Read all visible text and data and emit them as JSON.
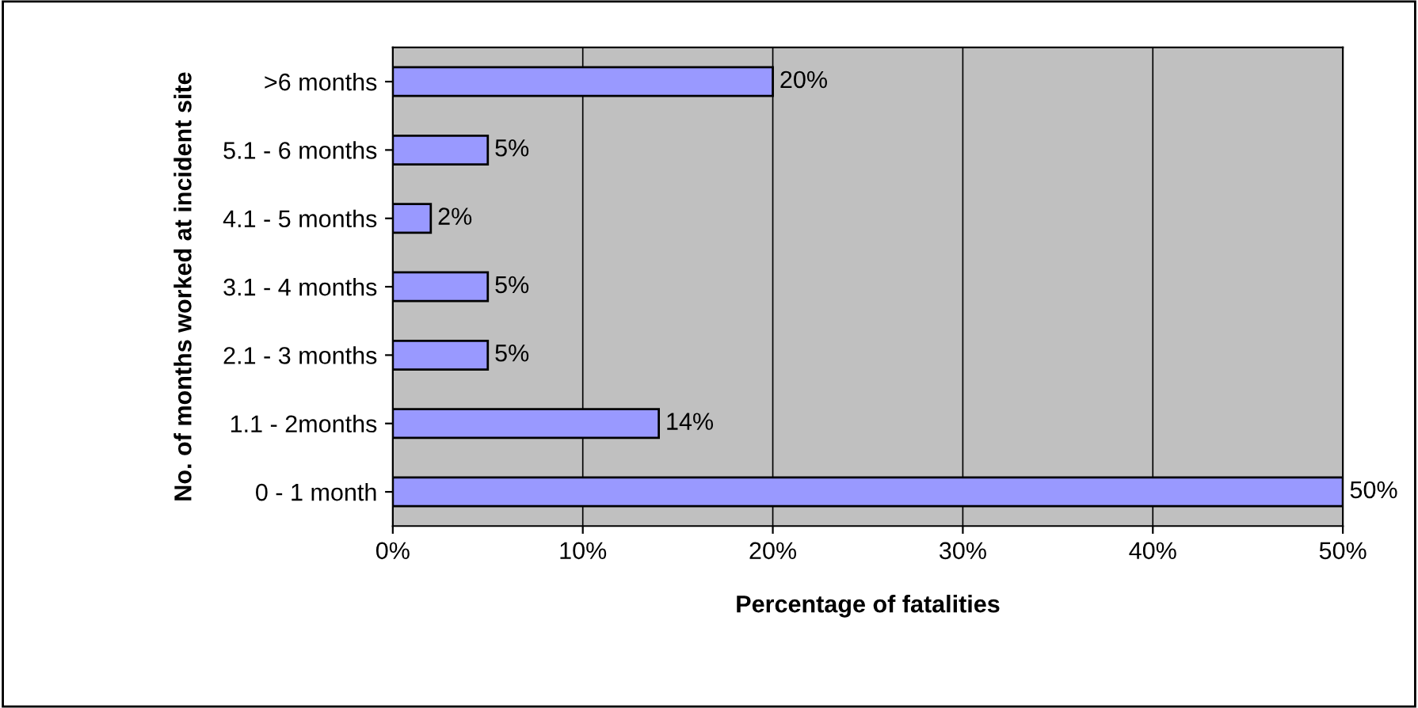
{
  "chart_data": {
    "type": "bar",
    "orientation": "horizontal",
    "categories": [
      ">6 months",
      "5.1 - 6 months",
      "4.1 - 5 months",
      "3.1 - 4 months",
      "2.1 - 3 months",
      "1.1 - 2months",
      "0 - 1 month"
    ],
    "values": [
      20,
      5,
      2,
      5,
      5,
      14,
      50
    ],
    "value_labels": [
      "20%",
      "5%",
      "2%",
      "5%",
      "5%",
      "14%",
      "50%"
    ],
    "color": "#9999ff",
    "xlabel": "Percentage of fatalities",
    "ylabel": "No. of months worked at incident site",
    "xlim": [
      0,
      50
    ],
    "xticks": [
      {
        "value": 0,
        "label": "0%"
      },
      {
        "value": 10,
        "label": "10%"
      },
      {
        "value": 20,
        "label": "20%"
      },
      {
        "value": 30,
        "label": "30%"
      },
      {
        "value": 40,
        "label": "40%"
      },
      {
        "value": 50,
        "label": "50%"
      }
    ],
    "grid": "x",
    "legend": false
  }
}
